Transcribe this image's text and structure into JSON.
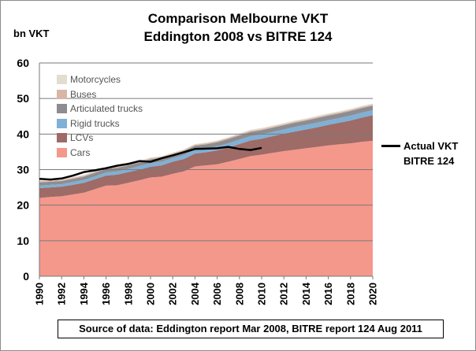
{
  "title_line1": "Comparison Melbourne VKT",
  "title_line2": "Eddington 2008  vs  BITRE 124",
  "source_note": "Source of data: Eddington report Mar 2008, BITRE report 124 Aug 2011",
  "chart_data": {
    "type": "area",
    "title": "",
    "xlabel": "",
    "ylabel": "bn VKT",
    "xlim": [
      1990,
      2020
    ],
    "ylim": [
      0,
      60
    ],
    "x_ticks": [
      "1990",
      "1992",
      "1994",
      "1996",
      "1998",
      "2000",
      "2002",
      "2004",
      "2006",
      "2008",
      "2010",
      "2012",
      "2014",
      "2016",
      "2018",
      "2020"
    ],
    "y_ticks": [
      "0",
      "10",
      "20",
      "30",
      "40",
      "50",
      "60"
    ],
    "grid": true,
    "legend_position": "top-left",
    "stacked": true,
    "x": [
      1990,
      1991,
      1992,
      1993,
      1994,
      1995,
      1996,
      1997,
      1998,
      1999,
      2000,
      2001,
      2002,
      2003,
      2004,
      2005,
      2006,
      2007,
      2008,
      2009,
      2010,
      2011,
      2012,
      2013,
      2014,
      2015,
      2016,
      2017,
      2018,
      2019,
      2020
    ],
    "series": [
      {
        "name": "Cars",
        "color": "#f4988b",
        "values": [
          22.0,
          22.3,
          22.5,
          23.0,
          23.5,
          24.5,
          25.5,
          25.6,
          26.3,
          27.0,
          27.8,
          28.0,
          28.8,
          29.5,
          30.9,
          31.2,
          31.5,
          32.2,
          33.0,
          33.8,
          34.2,
          34.7,
          35.2,
          35.6,
          36.0,
          36.4,
          36.8,
          37.1,
          37.4,
          37.8,
          38.1
        ]
      },
      {
        "name": "LCVs",
        "color": "#9e6b67",
        "values": [
          2.8,
          2.7,
          2.7,
          2.7,
          2.8,
          2.8,
          2.8,
          3.0,
          3.0,
          3.0,
          3.0,
          3.2,
          3.4,
          3.5,
          3.6,
          3.7,
          3.9,
          4.0,
          4.2,
          4.4,
          4.5,
          4.7,
          4.9,
          5.1,
          5.3,
          5.5,
          5.8,
          6.1,
          6.4,
          6.8,
          7.2
        ]
      },
      {
        "name": "Rigid trucks",
        "color": "#7fb0d6",
        "values": [
          0.7,
          0.7,
          0.7,
          0.8,
          0.8,
          0.8,
          0.9,
          0.9,
          0.9,
          1.0,
          1.0,
          1.0,
          1.0,
          1.1,
          1.1,
          1.1,
          1.1,
          1.2,
          1.2,
          1.2,
          1.2,
          1.2,
          1.2,
          1.3,
          1.3,
          1.3,
          1.3,
          1.3,
          1.4,
          1.4,
          1.4
        ]
      },
      {
        "name": "Articulated trucks",
        "color": "#8d8d91",
        "values": [
          0.9,
          0.9,
          0.9,
          0.9,
          0.9,
          1.0,
          1.0,
          1.0,
          1.0,
          1.0,
          1.1,
          1.1,
          1.1,
          1.1,
          1.1,
          1.1,
          1.2,
          1.2,
          1.2,
          1.2,
          1.2,
          1.2,
          1.2,
          1.2,
          1.2,
          1.3,
          1.3,
          1.3,
          1.3,
          1.3,
          1.3
        ]
      },
      {
        "name": "Buses",
        "color": "#d8b6a6",
        "values": [
          0.3,
          0.3,
          0.3,
          0.3,
          0.3,
          0.3,
          0.3,
          0.3,
          0.3,
          0.3,
          0.3,
          0.3,
          0.3,
          0.3,
          0.3,
          0.3,
          0.3,
          0.3,
          0.3,
          0.3,
          0.3,
          0.3,
          0.3,
          0.3,
          0.3,
          0.3,
          0.3,
          0.3,
          0.3,
          0.3,
          0.3
        ]
      },
      {
        "name": "Motorcycles",
        "color": "#e2ddd0",
        "values": [
          0.2,
          0.2,
          0.2,
          0.2,
          0.2,
          0.2,
          0.2,
          0.2,
          0.2,
          0.2,
          0.2,
          0.2,
          0.2,
          0.2,
          0.2,
          0.2,
          0.2,
          0.2,
          0.3,
          0.3,
          0.3,
          0.3,
          0.3,
          0.3,
          0.3,
          0.3,
          0.3,
          0.3,
          0.3,
          0.3,
          0.3
        ]
      }
    ],
    "legend_order": [
      "Motorcycles",
      "Buses",
      "Articulated trucks",
      "Rigid trucks",
      "LCVs",
      "Cars"
    ],
    "actual": {
      "name": "Actual VKT BITRE 124",
      "label_line1": "Actual VKT",
      "label_line2": "BITRE 124",
      "color": "#000000",
      "x": [
        1990,
        1991,
        1992,
        1993,
        1994,
        1995,
        1996,
        1997,
        1998,
        1999,
        2000,
        2001,
        2002,
        2003,
        2004,
        2005,
        2006,
        2007,
        2008,
        2009,
        2010
      ],
      "values": [
        27.4,
        27.2,
        27.5,
        28.3,
        29.3,
        29.8,
        30.4,
        31.1,
        31.6,
        32.4,
        32.2,
        33.2,
        34.0,
        34.9,
        35.8,
        35.9,
        36.0,
        36.4,
        35.8,
        35.5,
        36.1
      ]
    }
  }
}
